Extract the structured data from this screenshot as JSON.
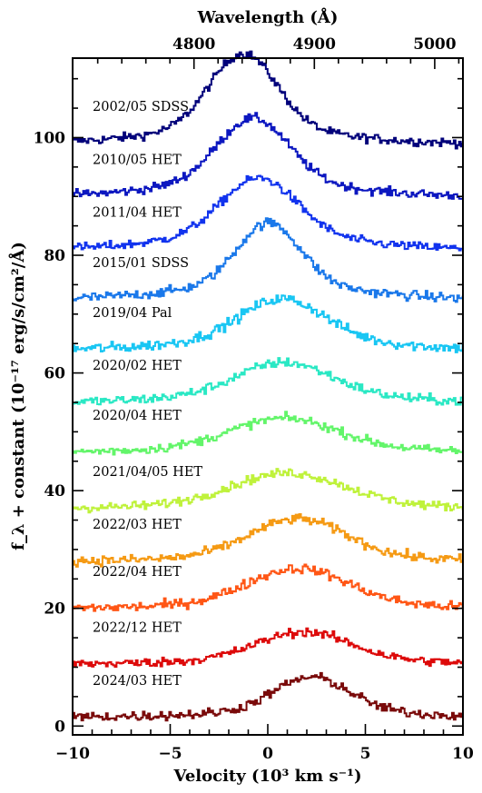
{
  "chart_data": {
    "type": "line",
    "xlabel_bottom": "Velocity (10³ km  s⁻¹)",
    "xlabel_top": "Wavelength (Å)",
    "ylabel": "f_λ + constant (10⁻¹⁷ erg/s/cm²/Å)",
    "xlim": [
      -10,
      10
    ],
    "ylim": [
      -1.5,
      113.5
    ],
    "x_ticks": [
      -10,
      -5,
      0,
      5,
      10
    ],
    "x_tick_labels": [
      "−10",
      "−5",
      "0",
      "5",
      "10"
    ],
    "y_ticks": [
      0,
      20,
      40,
      60,
      80,
      100
    ],
    "y_tick_labels": [
      "0",
      "20",
      "40",
      "60",
      "80",
      "100"
    ],
    "top_ticks_wavelength": [
      4800,
      4900,
      5000
    ],
    "top_tick_labels": [
      "4800",
      "4900",
      "5000"
    ],
    "rest_wavelength_angstrom": 4861.3,
    "grid": false,
    "legend": "none (labels placed beside each spectrum)",
    "series": [
      {
        "name": "2002/05 SDSS",
        "color": "#00007a",
        "offset": 99,
        "peak_velocity": -1.3,
        "peak_height": 12.8,
        "sigma": 1.7,
        "wing_height": 2.5,
        "wing_sigma": 4.5,
        "noise": 0.55
      },
      {
        "name": "2010/05 HET",
        "color": "#0c17c0",
        "offset": 90,
        "peak_velocity": -0.8,
        "peak_height": 10.8,
        "sigma": 1.8,
        "wing_height": 2.5,
        "wing_sigma": 4.5,
        "noise": 0.55
      },
      {
        "name": "2011/04 HET",
        "color": "#1133ee",
        "offset": 81,
        "peak_velocity": -0.5,
        "peak_height": 9.6,
        "sigma": 1.9,
        "wing_height": 2.5,
        "wing_sigma": 4.5,
        "noise": 0.55
      },
      {
        "name": "2015/01 SDSS",
        "color": "#1a78ea",
        "offset": 72.5,
        "peak_velocity": 0.0,
        "peak_height": 10.5,
        "sigma": 1.6,
        "wing_height": 2.5,
        "wing_sigma": 4.5,
        "noise": 0.6
      },
      {
        "name": "2019/04 Pal",
        "color": "#19c6f3",
        "offset": 64,
        "peak_velocity": 0.7,
        "peak_height": 6.6,
        "sigma": 2.1,
        "wing_height": 2.0,
        "wing_sigma": 4.5,
        "noise": 0.65
      },
      {
        "name": "2020/02 HET",
        "color": "#2ae8c4",
        "offset": 55,
        "peak_velocity": 0.8,
        "peak_height": 5.0,
        "sigma": 2.3,
        "wing_height": 1.8,
        "wing_sigma": 4.5,
        "noise": 0.6
      },
      {
        "name": "2020/04 HET",
        "color": "#63f56a",
        "offset": 46.5,
        "peak_velocity": 0.8,
        "peak_height": 4.6,
        "sigma": 2.6,
        "wing_height": 1.2,
        "wing_sigma": 5,
        "noise": 0.55
      },
      {
        "name": "2021/04/05 HET",
        "color": "#bff23b",
        "offset": 37,
        "peak_velocity": 1.0,
        "peak_height": 5.0,
        "sigma": 2.8,
        "wing_height": 1.0,
        "wing_sigma": 5,
        "noise": 0.55
      },
      {
        "name": "2022/03 HET",
        "color": "#f59a14",
        "offset": 28,
        "peak_velocity": 1.5,
        "peak_height": 6.2,
        "sigma": 2.4,
        "wing_height": 1.0,
        "wing_sigma": 5,
        "noise": 0.6
      },
      {
        "name": "2022/04 HET",
        "color": "#ff5615",
        "offset": 20,
        "peak_velocity": 1.5,
        "peak_height": 5.8,
        "sigma": 2.5,
        "wing_height": 1.0,
        "wing_sigma": 5,
        "noise": 0.6
      },
      {
        "name": "2022/12 HET",
        "color": "#dd0a0a",
        "offset": 10.5,
        "peak_velocity": 1.8,
        "peak_height": 4.5,
        "sigma": 2.3,
        "wing_height": 1.0,
        "wing_sigma": 5,
        "noise": 0.55
      },
      {
        "name": "2024/03 HET",
        "color": "#7a0a0a",
        "offset": 1.5,
        "peak_velocity": 2.2,
        "peak_height": 5.8,
        "sigma": 1.9,
        "wing_height": 1.0,
        "wing_sigma": 5,
        "noise": 0.6
      }
    ]
  }
}
